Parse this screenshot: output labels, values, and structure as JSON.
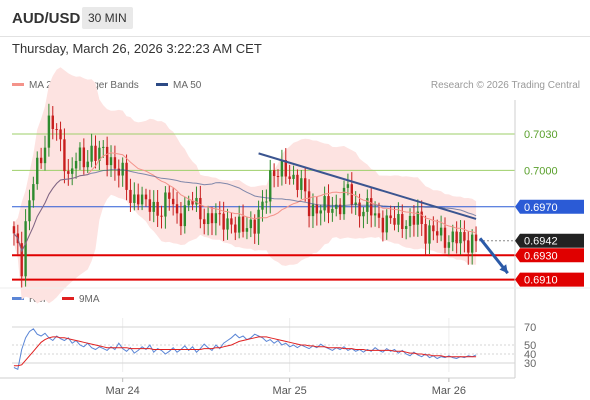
{
  "header": {
    "symbol": "AUD/USD",
    "timeframe": "30 MIN",
    "datetime": "Thursday, March 26, 2026 3:22:23 AM CET",
    "credit": "Research © 2026 Trading Central"
  },
  "legend": [
    {
      "label": "MA 20 + Bollinger Bands",
      "color": "#f4938a"
    },
    {
      "label": "MA 50",
      "color": "#2c4a85"
    }
  ],
  "rsi_legend": [
    {
      "label": "RSI",
      "color": "#5b86d6"
    },
    {
      "label": "9MA",
      "color": "#e02020"
    }
  ],
  "colors": {
    "up": "#2e8b2e",
    "down": "#c81e1e",
    "resistance": "#2b5bd6",
    "support": "#e00000",
    "pivot": "#222222",
    "trend": "#3b5590",
    "minor_level": "#9ecf6a",
    "band_fill": "#fde3e1"
  },
  "chart_data": [
    {
      "type": "candlestick",
      "title": "AUD/USD",
      "x_tick_labels": [
        "Mar 24",
        "Mar 25",
        "Mar 26"
      ],
      "ylim": [
        0.6908,
        0.7058
      ],
      "candle_count": 120,
      "anchors": [
        [
          0,
          0.6944
        ],
        [
          2,
          0.6922
        ],
        [
          3,
          0.6958
        ],
        [
          5,
          0.6992
        ],
        [
          7,
          0.7008
        ],
        [
          9,
          0.7042
        ],
        [
          10,
          0.704
        ],
        [
          12,
          0.7018
        ],
        [
          14,
          0.6996
        ],
        [
          16,
          0.7012
        ],
        [
          18,
          0.7004
        ],
        [
          20,
          0.7018
        ],
        [
          24,
          0.701
        ],
        [
          26,
          0.7006
        ],
        [
          28,
          0.6996
        ],
        [
          30,
          0.6974
        ],
        [
          32,
          0.6982
        ],
        [
          34,
          0.697
        ],
        [
          38,
          0.6968
        ],
        [
          40,
          0.6978
        ],
        [
          42,
          0.6962
        ],
        [
          46,
          0.6974
        ],
        [
          50,
          0.6958
        ],
        [
          54,
          0.6962
        ],
        [
          57,
          0.695
        ],
        [
          60,
          0.6958
        ],
        [
          62,
          0.6952
        ],
        [
          64,
          0.697
        ],
        [
          66,
          0.6998
        ],
        [
          68,
          0.6996
        ],
        [
          70,
          0.7
        ],
        [
          72,
          0.6994
        ],
        [
          74,
          0.6986
        ],
        [
          76,
          0.697
        ],
        [
          80,
          0.6968
        ],
        [
          84,
          0.6972
        ],
        [
          86,
          0.6984
        ],
        [
          88,
          0.697
        ],
        [
          92,
          0.6966
        ],
        [
          96,
          0.6956
        ],
        [
          100,
          0.696
        ],
        [
          102,
          0.6954
        ],
        [
          104,
          0.6962
        ],
        [
          106,
          0.695
        ],
        [
          108,
          0.6948
        ],
        [
          112,
          0.6944
        ],
        [
          116,
          0.6942
        ],
        [
          119,
          0.6943
        ]
      ],
      "last_price": 0.6942,
      "levels": [
        {
          "value": 0.703,
          "label": "0.7030",
          "kind": "minor"
        },
        {
          "value": 0.7,
          "label": "0.7000",
          "kind": "minor"
        },
        {
          "value": 0.697,
          "label": "0.6970",
          "kind": "resistance"
        },
        {
          "value": 0.6942,
          "label": "0.6942",
          "kind": "pivot"
        },
        {
          "value": 0.693,
          "label": "0.6930",
          "kind": "support"
        },
        {
          "value": 0.691,
          "label": "0.6910",
          "kind": "support"
        }
      ],
      "trendline": {
        "from": [
          63,
          0.7014
        ],
        "to": [
          119,
          0.696
        ]
      },
      "forecast_arrow": {
        "from": [
          119,
          0.6944
        ],
        "to": [
          122,
          0.6912
        ]
      }
    },
    {
      "type": "line",
      "title": "RSI",
      "ylim": [
        20,
        80
      ],
      "y_ticks": [
        70,
        50,
        40,
        30
      ],
      "series": [
        {
          "name": "RSI",
          "color": "#5b86d6",
          "values": [
            25,
            23,
            45,
            58,
            65,
            68,
            62,
            60,
            63,
            58,
            55,
            60,
            57,
            55,
            58,
            52,
            55,
            50,
            48,
            52,
            47,
            45,
            48,
            46,
            44,
            48,
            45,
            52,
            46,
            43,
            47,
            41,
            44,
            48,
            45,
            50,
            42,
            46,
            44,
            40,
            43,
            47,
            42,
            45,
            49,
            44,
            48,
            42,
            46,
            51,
            47,
            44,
            50,
            46,
            52,
            55,
            58,
            62,
            58,
            60,
            56,
            58,
            62,
            60,
            58,
            54,
            56,
            52,
            55,
            50,
            52,
            48,
            50,
            47,
            50,
            48,
            46,
            49,
            47,
            51,
            48,
            46,
            44,
            47,
            45,
            48,
            44,
            46,
            43,
            45,
            42,
            45,
            43,
            47,
            44,
            42,
            46,
            43,
            45,
            41,
            44,
            40,
            38,
            42,
            39,
            37,
            40,
            36,
            38,
            35,
            37,
            36,
            38,
            36,
            35,
            37,
            36,
            38,
            37,
            39
          ]
        },
        {
          "name": "9MA",
          "color": "#e02020",
          "values": [
            27,
            27,
            28,
            33,
            38,
            43,
            48,
            53,
            56,
            58,
            59,
            59,
            58,
            58,
            57,
            56,
            55,
            54,
            53,
            52,
            51,
            50,
            49,
            48,
            47,
            47,
            47,
            47,
            47,
            47,
            46,
            46,
            46,
            46,
            46,
            46,
            45,
            45,
            45,
            45,
            45,
            45,
            45,
            45,
            45,
            45,
            45,
            45,
            45,
            46,
            46,
            46,
            47,
            47,
            48,
            49,
            50,
            52,
            54,
            55,
            56,
            57,
            58,
            59,
            59,
            59,
            58,
            57,
            56,
            55,
            54,
            53,
            52,
            51,
            50,
            50,
            49,
            49,
            48,
            48,
            48,
            47,
            47,
            47,
            47,
            46,
            46,
            46,
            45,
            45,
            45,
            44,
            44,
            44,
            44,
            44,
            44,
            44,
            43,
            43,
            43,
            42,
            41,
            41,
            40,
            40,
            39,
            39,
            38,
            38,
            38,
            37,
            37,
            37,
            37,
            37,
            37,
            37,
            37,
            37
          ]
        }
      ]
    }
  ]
}
